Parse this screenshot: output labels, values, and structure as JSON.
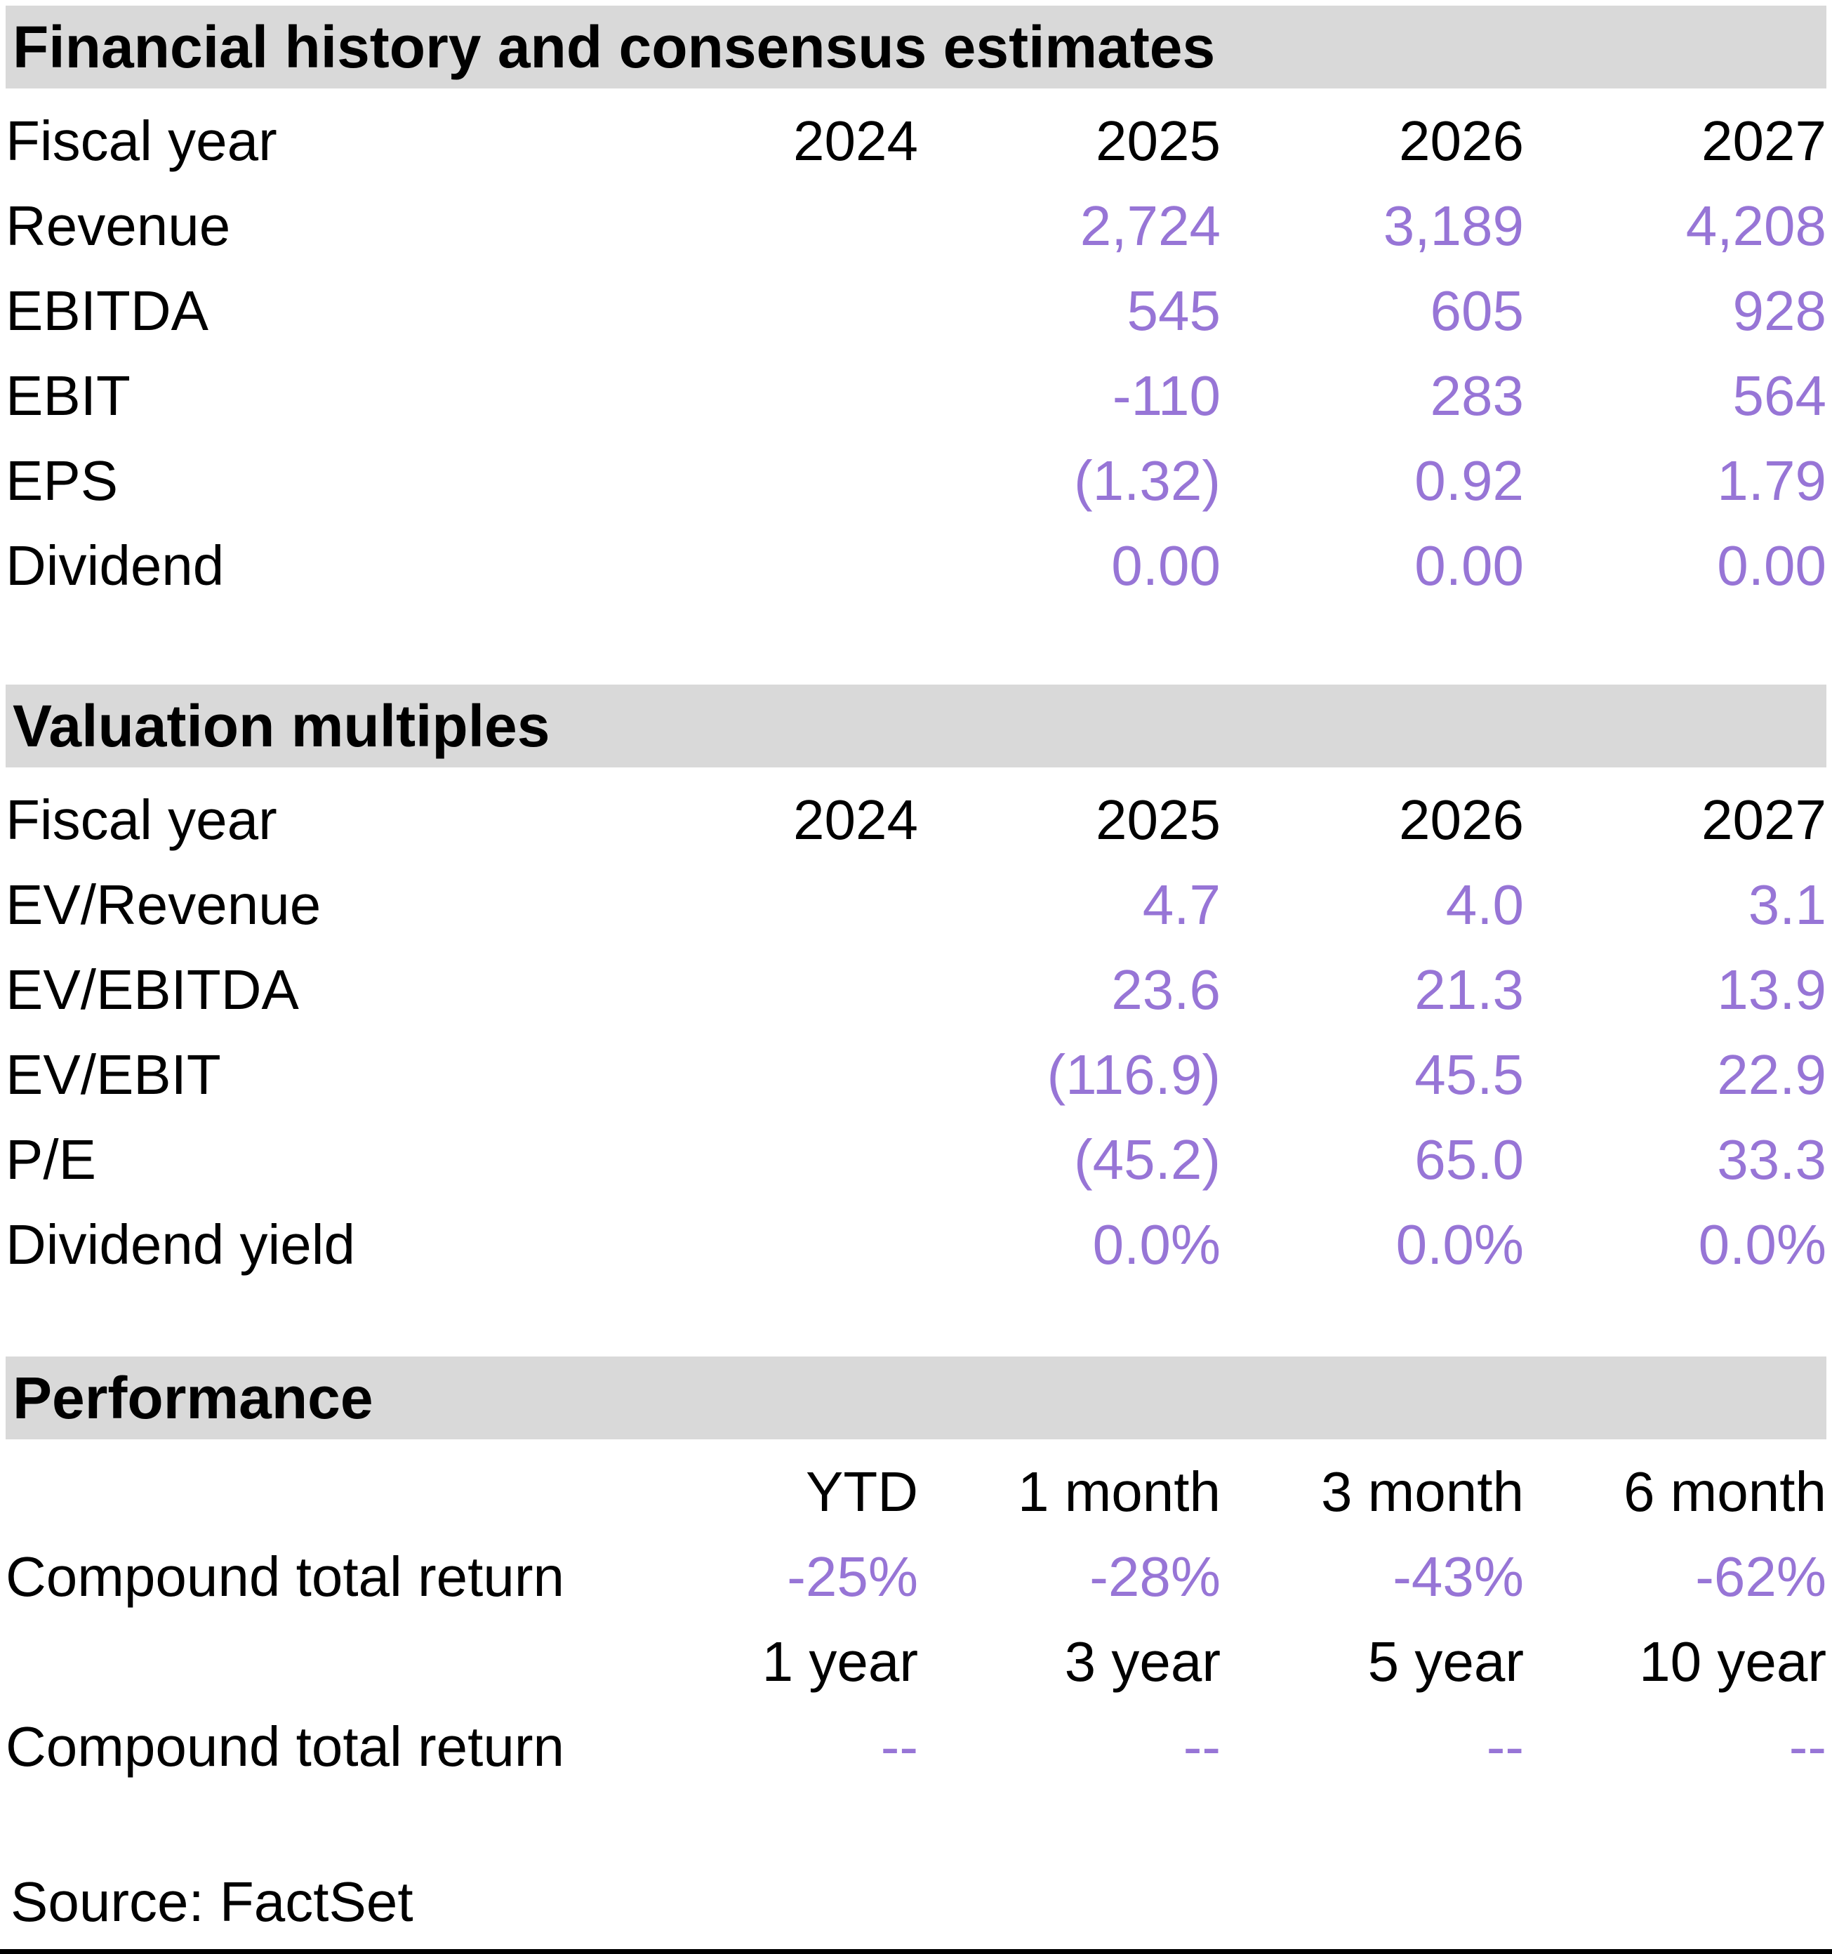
{
  "colors": {
    "accent_purple": "#9775D6",
    "band_gray": "#D9D9D9",
    "text_black": "#000000"
  },
  "sections": [
    {
      "title": "Financial history and consensus estimates",
      "header": {
        "label": "Fiscal year",
        "cols": [
          "2024",
          "2025",
          "2026",
          "2027"
        ]
      },
      "rows": [
        {
          "label": "Revenue",
          "values": [
            "",
            "2,724",
            "3,189",
            "4,208"
          ]
        },
        {
          "label": "EBITDA",
          "values": [
            "",
            "545",
            "605",
            "928"
          ]
        },
        {
          "label": "EBIT",
          "values": [
            "",
            "-110",
            "283",
            "564"
          ]
        },
        {
          "label": "EPS",
          "values": [
            "",
            "(1.32)",
            "0.92",
            "1.79"
          ]
        },
        {
          "label": "Dividend",
          "values": [
            "",
            "0.00",
            "0.00",
            "0.00"
          ]
        }
      ]
    },
    {
      "title": "Valuation multiples",
      "header": {
        "label": "Fiscal year",
        "cols": [
          "2024",
          "2025",
          "2026",
          "2027"
        ]
      },
      "rows": [
        {
          "label": "EV/Revenue",
          "values": [
            "",
            "4.7",
            "4.0",
            "3.1"
          ]
        },
        {
          "label": "EV/EBITDA",
          "values": [
            "",
            "23.6",
            "21.3",
            "13.9"
          ]
        },
        {
          "label": "EV/EBIT",
          "values": [
            "",
            "(116.9)",
            "45.5",
            "22.9"
          ]
        },
        {
          "label": "P/E",
          "values": [
            "",
            "(45.2)",
            "65.0",
            "33.3"
          ]
        },
        {
          "label": "Dividend yield",
          "values": [
            "",
            "0.0%",
            "0.0%",
            "0.0%"
          ]
        }
      ]
    },
    {
      "title": "Performance",
      "groups": [
        {
          "cols": [
            "YTD",
            "1 month",
            "3 month",
            "6 month"
          ],
          "row": {
            "label": "Compound total return",
            "values": [
              "-25%",
              "-28%",
              "-43%",
              "-62%"
            ]
          }
        },
        {
          "cols": [
            "1 year",
            "3 year",
            "5 year",
            "10 year"
          ],
          "row": {
            "label": "Compound total return",
            "values": [
              "--",
              "--",
              "--",
              "--"
            ]
          }
        }
      ]
    }
  ],
  "footer": {
    "source_note": "Source: FactSet"
  }
}
